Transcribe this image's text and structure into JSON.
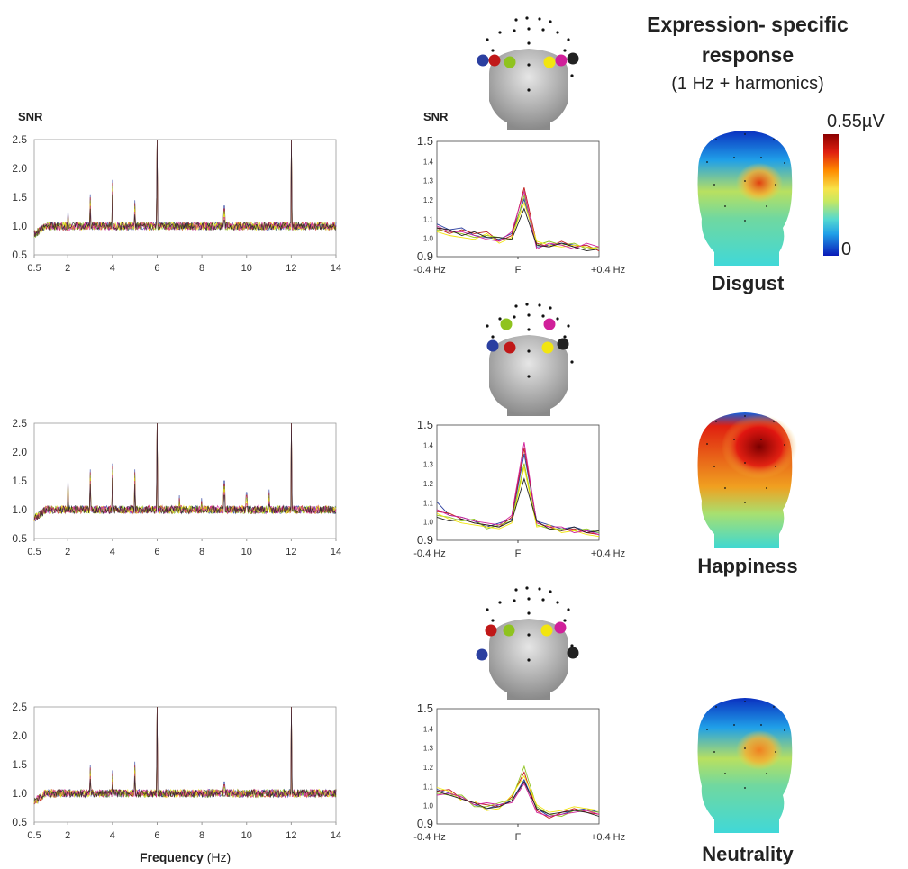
{
  "header": {
    "title_line1": "Expression- specific",
    "title_line2": "response",
    "subtitle": "(1 Hz + harmonics)"
  },
  "colorbar": {
    "max_label": "0.55µV",
    "min_label": "0"
  },
  "xlabel_bold": "Frequency",
  "xlabel_unit": "(Hz)",
  "snr_label": "SNR",
  "electrode_colors": [
    "#2b3fa0",
    "#c01818",
    "#8fc31f",
    "#f2e50f",
    "#d0209a",
    "#222222"
  ],
  "conditions": [
    {
      "name": "Disgust",
      "topo_level": 0.45
    },
    {
      "name": "Happiness",
      "topo_level": 1.0
    },
    {
      "name": "Neutrality",
      "topo_level": 0.35
    }
  ],
  "chart_data": [
    {
      "type": "line",
      "panel": "Disgust spectrum",
      "ylabel": "SNR",
      "xlabel": "",
      "xlim": [
        0.5,
        14
      ],
      "ylim": [
        0.5,
        2.5
      ],
      "xticks": [
        "0.5",
        "2",
        "4",
        "6",
        "8",
        "10",
        "12",
        "14"
      ],
      "yticks": [
        "0.5",
        "1.0",
        "1.5",
        "2.0",
        "2.5"
      ],
      "baseline": 1.0,
      "peaks": [
        {
          "x": 2,
          "y": 1.3
        },
        {
          "x": 3,
          "y": 1.55
        },
        {
          "x": 4,
          "y": 1.8
        },
        {
          "x": 5,
          "y": 1.45
        },
        {
          "x": 6,
          "y": 2.5
        },
        {
          "x": 9,
          "y": 1.35
        },
        {
          "x": 12,
          "y": 2.5
        }
      ]
    },
    {
      "type": "line",
      "panel": "Disgust F zoom",
      "ylabel": "SNR",
      "xticks": [
        "-0.4 Hz",
        "F",
        "+0.4 Hz"
      ],
      "yticks": [
        "0.9",
        "1.0",
        "1.1",
        "1.2",
        "1.3",
        "1.4",
        "1.5"
      ],
      "ylim": [
        0.9,
        1.5
      ],
      "series": [
        {
          "color": "#2b3fa0",
          "values": [
            1.07,
            1.04,
            1.05,
            1.01,
            1.0,
            0.99,
            1.02,
            1.2,
            0.95,
            0.96,
            0.97,
            0.96,
            0.95,
            0.94
          ]
        },
        {
          "color": "#c01818",
          "values": [
            1.05,
            1.02,
            1.04,
            1.02,
            1.03,
            0.98,
            1.01,
            1.26,
            0.97,
            0.95,
            0.98,
            0.95,
            0.96,
            0.93
          ]
        },
        {
          "color": "#8fc31f",
          "values": [
            1.04,
            1.03,
            1.02,
            1.0,
            1.01,
            1.0,
            0.99,
            1.22,
            0.96,
            0.98,
            0.96,
            0.97,
            0.94,
            0.95
          ]
        },
        {
          "color": "#f2e50f",
          "values": [
            1.03,
            1.01,
            1.0,
            0.99,
            1.02,
            0.97,
            1.0,
            1.18,
            0.98,
            0.96,
            0.95,
            0.96,
            0.95,
            0.94
          ]
        },
        {
          "color": "#d0209a",
          "values": [
            1.06,
            1.03,
            1.03,
            1.01,
            0.99,
            0.98,
            1.03,
            1.24,
            0.94,
            0.97,
            0.96,
            0.94,
            0.97,
            0.95
          ]
        },
        {
          "color": "#222222",
          "values": [
            1.05,
            1.04,
            1.01,
            1.03,
            1.0,
            1.0,
            0.99,
            1.15,
            0.96,
            0.95,
            0.97,
            0.95,
            0.93,
            0.94
          ]
        }
      ]
    },
    {
      "type": "line",
      "panel": "Happiness spectrum",
      "xlim": [
        0.5,
        14
      ],
      "ylim": [
        0.5,
        2.5
      ],
      "xticks": [
        "0.5",
        "2",
        "4",
        "6",
        "8",
        "10",
        "12",
        "14"
      ],
      "yticks": [
        "0.5",
        "1.0",
        "1.5",
        "2.0",
        "2.5"
      ],
      "baseline": 1.0,
      "peaks": [
        {
          "x": 2,
          "y": 1.6
        },
        {
          "x": 3,
          "y": 1.7
        },
        {
          "x": 4,
          "y": 1.8
        },
        {
          "x": 5,
          "y": 1.7
        },
        {
          "x": 6,
          "y": 2.5
        },
        {
          "x": 7,
          "y": 1.25
        },
        {
          "x": 8,
          "y": 1.2
        },
        {
          "x": 9,
          "y": 1.5
        },
        {
          "x": 10,
          "y": 1.3
        },
        {
          "x": 11,
          "y": 1.35
        },
        {
          "x": 12,
          "y": 2.5
        }
      ]
    },
    {
      "type": "line",
      "panel": "Happiness F zoom",
      "xticks": [
        "-0.4 Hz",
        "F",
        "+0.4 Hz"
      ],
      "yticks": [
        "0.9",
        "1.0",
        "1.1",
        "1.2",
        "1.3",
        "1.4",
        "1.5"
      ],
      "ylim": [
        0.9,
        1.5
      ],
      "series": [
        {
          "color": "#2b3fa0",
          "values": [
            1.1,
            1.03,
            1.02,
            1.0,
            0.97,
            0.99,
            1.01,
            1.35,
            1.0,
            0.98,
            0.96,
            0.97,
            0.95,
            0.94
          ]
        },
        {
          "color": "#c01818",
          "values": [
            1.05,
            1.04,
            1.01,
            0.99,
            0.98,
            0.97,
            1.02,
            1.38,
            0.99,
            0.97,
            0.95,
            0.96,
            0.94,
            0.93
          ]
        },
        {
          "color": "#8fc31f",
          "values": [
            1.03,
            1.02,
            1.0,
            1.01,
            0.96,
            0.98,
            1.0,
            1.3,
            0.98,
            0.96,
            0.96,
            0.95,
            0.96,
            0.94
          ]
        },
        {
          "color": "#f2e50f",
          "values": [
            1.04,
            1.01,
            0.99,
            0.98,
            0.97,
            0.96,
            0.99,
            1.28,
            0.97,
            0.98,
            0.94,
            0.95,
            0.93,
            0.92
          ]
        },
        {
          "color": "#d0209a",
          "values": [
            1.06,
            1.03,
            1.02,
            1.0,
            0.99,
            0.98,
            1.03,
            1.41,
            0.99,
            0.97,
            0.97,
            0.94,
            0.95,
            0.93
          ]
        },
        {
          "color": "#222222",
          "values": [
            1.02,
            1.0,
            1.01,
            0.99,
            0.98,
            0.97,
            1.0,
            1.22,
            1.0,
            0.96,
            0.95,
            0.97,
            0.94,
            0.95
          ]
        }
      ]
    },
    {
      "type": "line",
      "panel": "Neutrality spectrum",
      "xlabel": "Frequency (Hz)",
      "xlim": [
        0.5,
        14
      ],
      "ylim": [
        0.5,
        2.5
      ],
      "xticks": [
        "0.5",
        "2",
        "4",
        "6",
        "8",
        "10",
        "12",
        "14"
      ],
      "yticks": [
        "0.5",
        "1.0",
        "1.5",
        "2.0",
        "2.5"
      ],
      "baseline": 1.0,
      "peaks": [
        {
          "x": 3,
          "y": 1.5
        },
        {
          "x": 4,
          "y": 1.4
        },
        {
          "x": 5,
          "y": 1.55
        },
        {
          "x": 6,
          "y": 2.5
        },
        {
          "x": 9,
          "y": 1.2
        },
        {
          "x": 12,
          "y": 2.5
        }
      ]
    },
    {
      "type": "line",
      "panel": "Neutrality F zoom",
      "xticks": [
        "-0.4 Hz",
        "F",
        "+0.4 Hz"
      ],
      "yticks": [
        "0.9",
        "1.0",
        "1.1",
        "1.2",
        "1.3",
        "1.4",
        "1.5"
      ],
      "ylim": [
        0.9,
        1.5
      ],
      "series": [
        {
          "color": "#2b3fa0",
          "values": [
            1.08,
            1.06,
            1.04,
            1.0,
            0.98,
            1.0,
            1.02,
            1.13,
            0.98,
            0.94,
            0.95,
            0.97,
            0.98,
            0.96
          ]
        },
        {
          "color": "#c01818",
          "values": [
            1.07,
            1.08,
            1.03,
            1.01,
            1.0,
            0.99,
            1.04,
            1.17,
            0.97,
            0.93,
            0.96,
            0.98,
            0.96,
            0.95
          ]
        },
        {
          "color": "#8fc31f",
          "values": [
            1.06,
            1.05,
            1.05,
            0.99,
            0.99,
            1.01,
            1.03,
            1.2,
            0.99,
            0.95,
            0.94,
            0.97,
            0.97,
            0.96
          ]
        },
        {
          "color": "#f2e50f",
          "values": [
            1.09,
            1.07,
            1.02,
            1.02,
            0.97,
            0.98,
            1.05,
            1.15,
            1.0,
            0.96,
            0.97,
            0.99,
            0.98,
            0.97
          ]
        },
        {
          "color": "#d0209a",
          "values": [
            1.05,
            1.06,
            1.04,
            1.0,
            1.01,
            1.0,
            1.01,
            1.11,
            0.96,
            0.94,
            0.95,
            0.96,
            0.97,
            0.95
          ]
        },
        {
          "color": "#222222",
          "values": [
            1.07,
            1.05,
            1.03,
            1.01,
            0.98,
            0.99,
            1.02,
            1.12,
            0.98,
            0.95,
            0.96,
            0.97,
            0.96,
            0.94
          ]
        }
      ]
    }
  ]
}
